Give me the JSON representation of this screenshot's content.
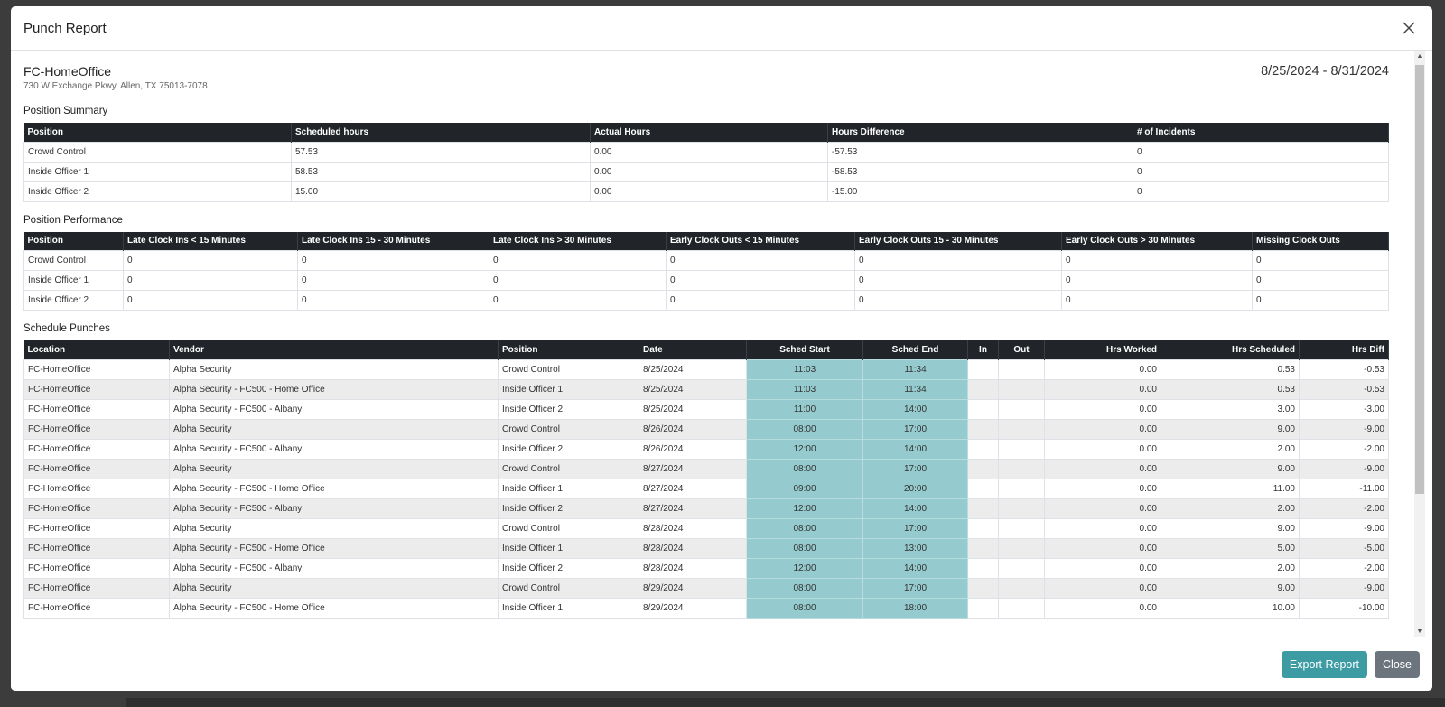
{
  "modal": {
    "title": "Punch Report"
  },
  "location": {
    "name": "FC-HomeOffice",
    "address": "730 W Exchange Pkwy, Allen, TX 75013-7078",
    "date_range": "8/25/2024 - 8/31/2024"
  },
  "position_summary": {
    "title": "Position Summary",
    "headers": [
      "Position",
      "Scheduled hours",
      "Actual Hours",
      "Hours Difference",
      "# of Incidents"
    ],
    "rows": [
      [
        "Crowd Control",
        "57.53",
        "0.00",
        "-57.53",
        "0"
      ],
      [
        "Inside Officer 1",
        "58.53",
        "0.00",
        "-58.53",
        "0"
      ],
      [
        "Inside Officer 2",
        "15.00",
        "0.00",
        "-15.00",
        "0"
      ]
    ]
  },
  "position_performance": {
    "title": "Position Performance",
    "headers": [
      "Position",
      "Late Clock Ins < 15 Minutes",
      "Late Clock Ins 15 - 30 Minutes",
      "Late Clock Ins > 30 Minutes",
      "Early Clock Outs < 15 Minutes",
      "Early Clock Outs 15 - 30 Minutes",
      "Early Clock Outs > 30 Minutes",
      "Missing Clock Outs"
    ],
    "rows": [
      [
        "Crowd Control",
        "0",
        "0",
        "0",
        "0",
        "0",
        "0",
        "0"
      ],
      [
        "Inside Officer 1",
        "0",
        "0",
        "0",
        "0",
        "0",
        "0",
        "0"
      ],
      [
        "Inside Officer 2",
        "0",
        "0",
        "0",
        "0",
        "0",
        "0",
        "0"
      ]
    ]
  },
  "schedule_punches": {
    "title": "Schedule Punches",
    "headers": [
      "Location",
      "Vendor",
      "Position",
      "Date",
      "Sched Start",
      "Sched End",
      "In",
      "Out",
      "Hrs Worked",
      "Hrs Scheduled",
      "Hrs Diff"
    ],
    "rows": [
      [
        "FC-HomeOffice",
        "Alpha Security",
        "Crowd Control",
        "8/25/2024",
        "11:03",
        "11:34",
        "",
        "",
        "0.00",
        "0.53",
        "-0.53"
      ],
      [
        "FC-HomeOffice",
        "Alpha Security - FC500 - Home Office",
        "Inside Officer 1",
        "8/25/2024",
        "11:03",
        "11:34",
        "",
        "",
        "0.00",
        "0.53",
        "-0.53"
      ],
      [
        "FC-HomeOffice",
        "Alpha Security - FC500 - Albany",
        "Inside Officer 2",
        "8/25/2024",
        "11:00",
        "14:00",
        "",
        "",
        "0.00",
        "3.00",
        "-3.00"
      ],
      [
        "FC-HomeOffice",
        "Alpha Security",
        "Crowd Control",
        "8/26/2024",
        "08:00",
        "17:00",
        "",
        "",
        "0.00",
        "9.00",
        "-9.00"
      ],
      [
        "FC-HomeOffice",
        "Alpha Security - FC500 - Albany",
        "Inside Officer 2",
        "8/26/2024",
        "12:00",
        "14:00",
        "",
        "",
        "0.00",
        "2.00",
        "-2.00"
      ],
      [
        "FC-HomeOffice",
        "Alpha Security",
        "Crowd Control",
        "8/27/2024",
        "08:00",
        "17:00",
        "",
        "",
        "0.00",
        "9.00",
        "-9.00"
      ],
      [
        "FC-HomeOffice",
        "Alpha Security - FC500 - Home Office",
        "Inside Officer 1",
        "8/27/2024",
        "09:00",
        "20:00",
        "",
        "",
        "0.00",
        "11.00",
        "-11.00"
      ],
      [
        "FC-HomeOffice",
        "Alpha Security - FC500 - Albany",
        "Inside Officer 2",
        "8/27/2024",
        "12:00",
        "14:00",
        "",
        "",
        "0.00",
        "2.00",
        "-2.00"
      ],
      [
        "FC-HomeOffice",
        "Alpha Security",
        "Crowd Control",
        "8/28/2024",
        "08:00",
        "17:00",
        "",
        "",
        "0.00",
        "9.00",
        "-9.00"
      ],
      [
        "FC-HomeOffice",
        "Alpha Security - FC500 - Home Office",
        "Inside Officer 1",
        "8/28/2024",
        "08:00",
        "13:00",
        "",
        "",
        "0.00",
        "5.00",
        "-5.00"
      ],
      [
        "FC-HomeOffice",
        "Alpha Security - FC500 - Albany",
        "Inside Officer 2",
        "8/28/2024",
        "12:00",
        "14:00",
        "",
        "",
        "0.00",
        "2.00",
        "-2.00"
      ],
      [
        "FC-HomeOffice",
        "Alpha Security",
        "Crowd Control",
        "8/29/2024",
        "08:00",
        "17:00",
        "",
        "",
        "0.00",
        "9.00",
        "-9.00"
      ],
      [
        "FC-HomeOffice",
        "Alpha Security - FC500 - Home Office",
        "Inside Officer 1",
        "8/29/2024",
        "08:00",
        "18:00",
        "",
        "",
        "0.00",
        "10.00",
        "-10.00"
      ]
    ]
  },
  "footer": {
    "export_label": "Export Report",
    "close_label": "Close"
  },
  "colors": {
    "header_bg": "#212529",
    "sched_cell": "#95cbce",
    "export_button": "#3d9ba3",
    "close_button": "#6c757d"
  }
}
